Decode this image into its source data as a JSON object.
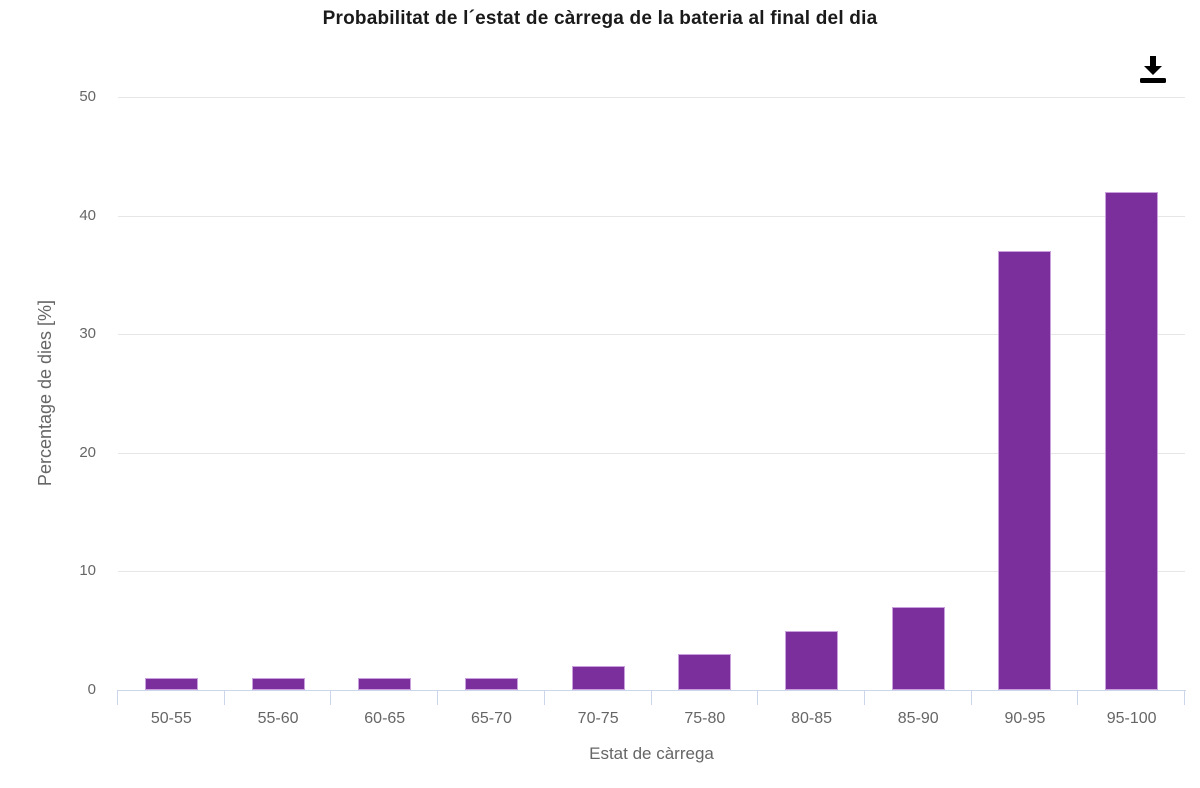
{
  "chart_data": {
    "type": "bar",
    "title": "Probabilitat de l´estat de càrrega de la bateria al final del dia",
    "categories": [
      "50-55",
      "55-60",
      "60-65",
      "65-70",
      "70-75",
      "75-80",
      "80-85",
      "85-90",
      "90-95",
      "95-100"
    ],
    "values": [
      1,
      1,
      1,
      1,
      2,
      3,
      5,
      7,
      37,
      42
    ],
    "xlabel": "Estat de càrrega",
    "ylabel": "Percentage de dies [%]",
    "ylim": [
      0,
      50
    ],
    "yticks": [
      0,
      10,
      20,
      30,
      40,
      50
    ],
    "grid": true,
    "legend": "none",
    "toolbar": {
      "download_tooltip": "Download"
    },
    "colors": {
      "bar": "#7b2f9c",
      "bar_border": "#c9a0dc",
      "gridline": "#e6e6e6",
      "axis_line": "#ccd6eb",
      "label": "#666666",
      "title": "#1a1a1a",
      "icon": "#000000"
    }
  }
}
